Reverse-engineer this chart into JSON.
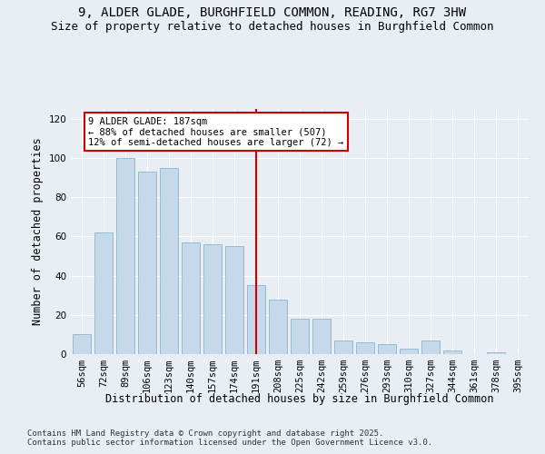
{
  "title_line1": "9, ALDER GLADE, BURGHFIELD COMMON, READING, RG7 3HW",
  "title_line2": "Size of property relative to detached houses in Burghfield Common",
  "xlabel": "Distribution of detached houses by size in Burghfield Common",
  "ylabel": "Number of detached properties",
  "footnote": "Contains HM Land Registry data © Crown copyright and database right 2025.\nContains public sector information licensed under the Open Government Licence v3.0.",
  "categories": [
    "56sqm",
    "72sqm",
    "89sqm",
    "106sqm",
    "123sqm",
    "140sqm",
    "157sqm",
    "174sqm",
    "191sqm",
    "208sqm",
    "225sqm",
    "242sqm",
    "259sqm",
    "276sqm",
    "293sqm",
    "310sqm",
    "327sqm",
    "344sqm",
    "361sqm",
    "378sqm",
    "395sqm"
  ],
  "values": [
    10,
    62,
    100,
    93,
    95,
    57,
    56,
    55,
    35,
    28,
    18,
    18,
    7,
    6,
    5,
    3,
    7,
    2,
    0,
    1,
    0
  ],
  "bar_color": "#c5d9ea",
  "bar_edge_color": "#7aafc8",
  "vline_x": 8,
  "vline_color": "#cc0000",
  "annotation_text": "9 ALDER GLADE: 187sqm\n← 88% of detached houses are smaller (507)\n12% of semi-detached houses are larger (72) →",
  "annotation_box_color": "#cc0000",
  "annotation_bg": "#ffffff",
  "ylim": [
    0,
    125
  ],
  "yticks": [
    0,
    20,
    40,
    60,
    80,
    100,
    120
  ],
  "background_color": "#e8eef4",
  "plot_bg_color": "#e8eef4",
  "title_fontsize": 10,
  "subtitle_fontsize": 9,
  "axis_label_fontsize": 8.5,
  "tick_fontsize": 7.5,
  "annotation_fontsize": 7.5,
  "footnote_fontsize": 6.5
}
